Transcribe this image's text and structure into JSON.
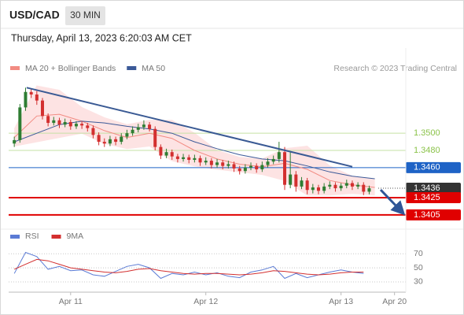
{
  "header": {
    "symbol": "USD/CAD",
    "timeframe": "30 MIN",
    "timestamp": "Thursday, April 13, 2023 6:20:03 AM CET",
    "credit": "Research © 2023 Trading Central"
  },
  "chart_data": {
    "type": "candlestick",
    "up_color": "#2e7d32",
    "down_color": "#d32f2f",
    "xlim": [
      -11,
      59.5
    ],
    "xticks": [
      {
        "value": 0,
        "label": "Apr 11"
      },
      {
        "value": 24,
        "label": "Apr 12"
      },
      {
        "value": 48,
        "label": "Apr 13"
      },
      {
        "value": 57.5,
        "label": "Apr 20"
      }
    ],
    "ylim": [
      1.3393,
      1.3567
    ],
    "x": [
      -10,
      -9,
      -8,
      -7,
      -6,
      -5,
      -4,
      -3,
      -2,
      -1,
      0,
      1,
      2,
      3,
      4,
      5,
      6,
      7,
      8,
      9,
      10,
      11,
      12,
      13,
      14,
      15,
      16,
      17,
      18,
      19,
      20,
      21,
      22,
      23,
      24,
      25,
      26,
      27,
      28,
      29,
      30,
      31,
      32,
      33,
      34,
      35,
      36,
      37,
      38,
      39,
      40,
      41,
      42,
      43,
      44,
      45,
      46,
      47,
      48,
      49,
      50,
      51,
      52,
      53
    ],
    "ohlc": [
      [
        1.3488,
        1.3496,
        1.3484,
        1.3492
      ],
      [
        1.3492,
        1.3534,
        1.3489,
        1.353
      ],
      [
        1.353,
        1.3553,
        1.3526,
        1.3548
      ],
      [
        1.3548,
        1.3552,
        1.3541,
        1.3545
      ],
      [
        1.3545,
        1.3549,
        1.3533,
        1.3538
      ],
      [
        1.3538,
        1.3541,
        1.3516,
        1.352
      ],
      [
        1.352,
        1.3523,
        1.3508,
        1.3512
      ],
      [
        1.3512,
        1.3519,
        1.3509,
        1.3515
      ],
      [
        1.3515,
        1.3518,
        1.3506,
        1.351
      ],
      [
        1.351,
        1.3517,
        1.3507,
        1.3513
      ],
      [
        1.3513,
        1.3516,
        1.3504,
        1.3508
      ],
      [
        1.3508,
        1.3514,
        1.3505,
        1.3511
      ],
      [
        1.3511,
        1.3514,
        1.3505,
        1.3509
      ],
      [
        1.3509,
        1.3512,
        1.3502,
        1.3506
      ],
      [
        1.3506,
        1.3509,
        1.3494,
        1.3498
      ],
      [
        1.3498,
        1.3501,
        1.3486,
        1.349
      ],
      [
        1.349,
        1.3494,
        1.3484,
        1.3488
      ],
      [
        1.3488,
        1.3497,
        1.3485,
        1.3493
      ],
      [
        1.3493,
        1.3496,
        1.3486,
        1.349
      ],
      [
        1.349,
        1.35,
        1.3487,
        1.3496
      ],
      [
        1.3496,
        1.3504,
        1.3493,
        1.35
      ],
      [
        1.35,
        1.3508,
        1.3497,
        1.3504
      ],
      [
        1.3504,
        1.3511,
        1.3501,
        1.3507
      ],
      [
        1.3507,
        1.3515,
        1.3504,
        1.351
      ],
      [
        1.351,
        1.3513,
        1.3502,
        1.3505
      ],
      [
        1.3505,
        1.3508,
        1.348,
        1.3484
      ],
      [
        1.3484,
        1.3487,
        1.347,
        1.3474
      ],
      [
        1.3474,
        1.3482,
        1.3471,
        1.3478
      ],
      [
        1.3478,
        1.3481,
        1.3469,
        1.3473
      ],
      [
        1.3473,
        1.3476,
        1.3466,
        1.347
      ],
      [
        1.347,
        1.3476,
        1.3467,
        1.3472
      ],
      [
        1.3472,
        1.3475,
        1.3465,
        1.3469
      ],
      [
        1.3469,
        1.3475,
        1.3466,
        1.3471
      ],
      [
        1.3471,
        1.3474,
        1.3462,
        1.3466
      ],
      [
        1.3466,
        1.3472,
        1.3463,
        1.3468
      ],
      [
        1.3468,
        1.3471,
        1.3459,
        1.3463
      ],
      [
        1.3463,
        1.347,
        1.346,
        1.3466
      ],
      [
        1.3466,
        1.3469,
        1.3458,
        1.3462
      ],
      [
        1.3462,
        1.3468,
        1.3459,
        1.3464
      ],
      [
        1.3464,
        1.3467,
        1.3455,
        1.3459
      ],
      [
        1.3459,
        1.3462,
        1.3452,
        1.3456
      ],
      [
        1.3456,
        1.3464,
        1.3453,
        1.346
      ],
      [
        1.346,
        1.3466,
        1.3457,
        1.3462
      ],
      [
        1.3462,
        1.3465,
        1.3454,
        1.3458
      ],
      [
        1.3458,
        1.3467,
        1.3455,
        1.3463
      ],
      [
        1.3463,
        1.3471,
        1.346,
        1.3467
      ],
      [
        1.3467,
        1.3474,
        1.3464,
        1.347
      ],
      [
        1.347,
        1.349,
        1.3466,
        1.3478
      ],
      [
        1.3478,
        1.3484,
        1.3434,
        1.344
      ],
      [
        1.344,
        1.3479,
        1.3436,
        1.3452
      ],
      [
        1.3452,
        1.3456,
        1.3432,
        1.3438
      ],
      [
        1.3438,
        1.3449,
        1.3435,
        1.3445
      ],
      [
        1.3445,
        1.3448,
        1.3429,
        1.3434
      ],
      [
        1.3434,
        1.3441,
        1.343,
        1.3437
      ],
      [
        1.3437,
        1.344,
        1.3429,
        1.3433
      ],
      [
        1.3433,
        1.3442,
        1.343,
        1.3438
      ],
      [
        1.3438,
        1.3444,
        1.3435,
        1.344
      ],
      [
        1.344,
        1.3443,
        1.3432,
        1.3436
      ],
      [
        1.3436,
        1.3442,
        1.3433,
        1.3439
      ],
      [
        1.3439,
        1.3446,
        1.3436,
        1.3442
      ],
      [
        1.3442,
        1.3445,
        1.3434,
        1.3438
      ],
      [
        1.3438,
        1.3443,
        1.3435,
        1.344
      ],
      [
        1.344,
        1.3443,
        1.3428,
        1.3432
      ],
      [
        1.3432,
        1.3439,
        1.3429,
        1.3436
      ]
    ],
    "overlays": [
      {
        "name": "MA 20 + Bollinger Bands",
        "color": "#f28b82",
        "band_color": "#fde3e3",
        "x": [
          -10,
          -6,
          -2,
          2,
          6,
          10,
          14,
          18,
          22,
          26,
          30,
          34,
          38,
          42,
          46,
          50,
          54
        ],
        "values": [
          1.3495,
          1.352,
          1.3522,
          1.3514,
          1.3503,
          1.3495,
          1.35,
          1.3494,
          1.348,
          1.347,
          1.3464,
          1.3461,
          1.3465,
          1.3458,
          1.3445,
          1.344,
          1.3437
        ],
        "upper": [
          1.3505,
          1.3555,
          1.355,
          1.353,
          1.3518,
          1.351,
          1.3515,
          1.3515,
          1.35,
          1.348,
          1.3472,
          1.347,
          1.3482,
          1.3485,
          1.3462,
          1.345,
          1.3446
        ],
        "lower": [
          1.3485,
          1.349,
          1.3495,
          1.35,
          1.3488,
          1.3482,
          1.3485,
          1.3468,
          1.3462,
          1.3458,
          1.3455,
          1.3452,
          1.3445,
          1.3428,
          1.3428,
          1.343,
          1.3428
        ]
      },
      {
        "name": "MA 50",
        "color": "#3b5998",
        "x": [
          -10,
          -6,
          -2,
          2,
          6,
          10,
          14,
          18,
          22,
          26,
          30,
          34,
          38,
          42,
          46,
          50,
          54
        ],
        "values": [
          1.349,
          1.35,
          1.351,
          1.3514,
          1.3512,
          1.3508,
          1.3505,
          1.35,
          1.349,
          1.3482,
          1.3475,
          1.347,
          1.3468,
          1.3462,
          1.3455,
          1.345,
          1.3447
        ]
      }
    ],
    "trendline": {
      "x": [
        -7.8,
        50
      ],
      "values": [
        1.3553,
        1.3461
      ],
      "color": "#3a5a94"
    },
    "levels": [
      {
        "value": 1.35,
        "label": "1.3500",
        "color": "#8bc34a",
        "style": "text",
        "line": "thin"
      },
      {
        "value": 1.348,
        "label": "1.3480",
        "color": "#8bc34a",
        "style": "text",
        "line": "thin"
      },
      {
        "value": 1.346,
        "label": "1.3460",
        "color": "#1e63c6",
        "style": "box",
        "line": "solid"
      },
      {
        "value": 1.3436,
        "label": "1.3436",
        "color": "#333333",
        "style": "box",
        "line": "dotted"
      },
      {
        "value": 1.3425,
        "label": "1.3425",
        "color": "#e00000",
        "style": "box",
        "line": "thick"
      },
      {
        "value": 1.3405,
        "label": "1.3405",
        "color": "#e00000",
        "style": "box",
        "line": "thick"
      }
    ],
    "indicator": {
      "type": "line",
      "ylim": [
        21,
        77
      ],
      "yticks": [
        30,
        50,
        70
      ],
      "x": [
        -10,
        -8,
        -6,
        -4,
        -2,
        0,
        2,
        4,
        6,
        8,
        10,
        12,
        14,
        16,
        18,
        20,
        22,
        24,
        26,
        28,
        30,
        32,
        34,
        36,
        38,
        40,
        42,
        44,
        46,
        48,
        50,
        52
      ],
      "series": [
        {
          "name": "RSI",
          "color": "#5b7bd5",
          "values": [
            42,
            72,
            66,
            48,
            52,
            46,
            47,
            40,
            38,
            45,
            52,
            55,
            50,
            35,
            42,
            40,
            44,
            40,
            43,
            38,
            36,
            44,
            47,
            52,
            35,
            42,
            36,
            40,
            44,
            47,
            44,
            42
          ]
        },
        {
          "name": "9MA",
          "color": "#d32f2f",
          "values": [
            48,
            55,
            62,
            60,
            55,
            50,
            48,
            46,
            44,
            43,
            45,
            48,
            49,
            46,
            44,
            42,
            41,
            42,
            42,
            41,
            40,
            41,
            43,
            46,
            45,
            43,
            41,
            40,
            41,
            43,
            44,
            44
          ]
        }
      ]
    }
  }
}
